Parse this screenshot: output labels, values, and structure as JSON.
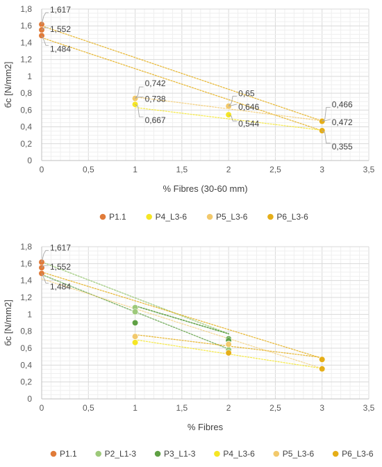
{
  "chart_data": [
    {
      "type": "scatter",
      "title": "",
      "xlabel": "% Fibres (30-60 mm)",
      "ylabel": "бc [N/mm2]",
      "xlim": [
        0,
        3.5
      ],
      "ylim": [
        0,
        1.8
      ],
      "xticks": [
        "0",
        "0,5",
        "1",
        "1,5",
        "2",
        "2,5",
        "3",
        "3,5"
      ],
      "yticks": [
        "0",
        "0,2",
        "0,4",
        "0,6",
        "0,8",
        "1",
        "1,2",
        "1,4",
        "1,6",
        "1,8"
      ],
      "grid": true,
      "legend_position": "bottom",
      "series": [
        {
          "name": "P1.1",
          "color": "#E07B39",
          "x": [
            0,
            0,
            0
          ],
          "y": [
            1.617,
            1.552,
            1.484
          ]
        },
        {
          "name": "P4_L3-6",
          "color": "#F5E624",
          "x": [
            1,
            1,
            2,
            2,
            3,
            3
          ],
          "y": [
            0.742,
            0.667,
            0.65,
            0.544,
            0.466,
            0.355
          ]
        },
        {
          "name": "P5_L3-6",
          "color": "#F2C96C",
          "x": [
            1,
            2,
            3
          ],
          "y": [
            0.738,
            0.646,
            0.472
          ]
        },
        {
          "name": "P6_L3-6",
          "color": "#E5AE18",
          "x": [
            3,
            3
          ],
          "y": [
            0.466,
            0.355
          ]
        }
      ],
      "data_labels": [
        {
          "text": "1,617",
          "x": 0,
          "y": 1.617
        },
        {
          "text": "1,552",
          "x": 0,
          "y": 1.552
        },
        {
          "text": "1,484",
          "x": 0,
          "y": 1.484
        },
        {
          "text": "0,742",
          "x": 1,
          "y": 0.742
        },
        {
          "text": "0,738",
          "x": 1,
          "y": 0.738
        },
        {
          "text": "0,667",
          "x": 1,
          "y": 0.667
        },
        {
          "text": "0,65",
          "x": 2,
          "y": 0.65
        },
        {
          "text": "0,646",
          "x": 2,
          "y": 0.646
        },
        {
          "text": "0,544",
          "x": 2,
          "y": 0.544
        },
        {
          "text": "0,466",
          "x": 3,
          "y": 0.466
        },
        {
          "text": "0,472",
          "x": 3,
          "y": 0.472
        },
        {
          "text": "0,355",
          "x": 3,
          "y": 0.355
        }
      ]
    },
    {
      "type": "scatter",
      "title": "",
      "xlabel": "% Fibres",
      "ylabel": "бc [N/mm2]",
      "xlim": [
        0,
        3.5
      ],
      "ylim": [
        0,
        1.8
      ],
      "xticks": [
        "0",
        "0,5",
        "1",
        "1,5",
        "2",
        "2,5",
        "3",
        "3,5"
      ],
      "yticks": [
        "0",
        "0,2",
        "0,4",
        "0,6",
        "0,8",
        "1",
        "1,2",
        "1,4",
        "1,6",
        "1,8"
      ],
      "grid": true,
      "legend_position": "bottom",
      "series": [
        {
          "name": "P1.1",
          "color": "#E07B39",
          "x": [
            0,
            0,
            0
          ],
          "y": [
            1.617,
            1.552,
            1.484
          ]
        },
        {
          "name": "P2_L1-3",
          "color": "#9DC97A",
          "x": [
            1,
            1,
            2
          ],
          "y": [
            1.08,
            1.03,
            0.58
          ]
        },
        {
          "name": "P3_L1-3",
          "color": "#5FA044",
          "x": [
            1,
            2,
            2
          ],
          "y": [
            0.9,
            0.71,
            0.69
          ]
        },
        {
          "name": "P4_L3-6",
          "color": "#F5E624",
          "x": [
            1,
            1,
            2,
            3
          ],
          "y": [
            0.742,
            0.667,
            0.65,
            0.466
          ]
        },
        {
          "name": "P5_L3-6",
          "color": "#F2C96C",
          "x": [
            1,
            2,
            3
          ],
          "y": [
            0.738,
            0.646,
            0.472
          ]
        },
        {
          "name": "P6_L3-6",
          "color": "#E5AE18",
          "x": [
            2,
            3,
            3
          ],
          "y": [
            0.544,
            0.466,
            0.355
          ]
        }
      ],
      "data_labels": [
        {
          "text": "1,617",
          "x": 0,
          "y": 1.617
        },
        {
          "text": "1,552",
          "x": 0,
          "y": 1.552
        },
        {
          "text": "1,484",
          "x": 0,
          "y": 1.484
        }
      ]
    }
  ]
}
